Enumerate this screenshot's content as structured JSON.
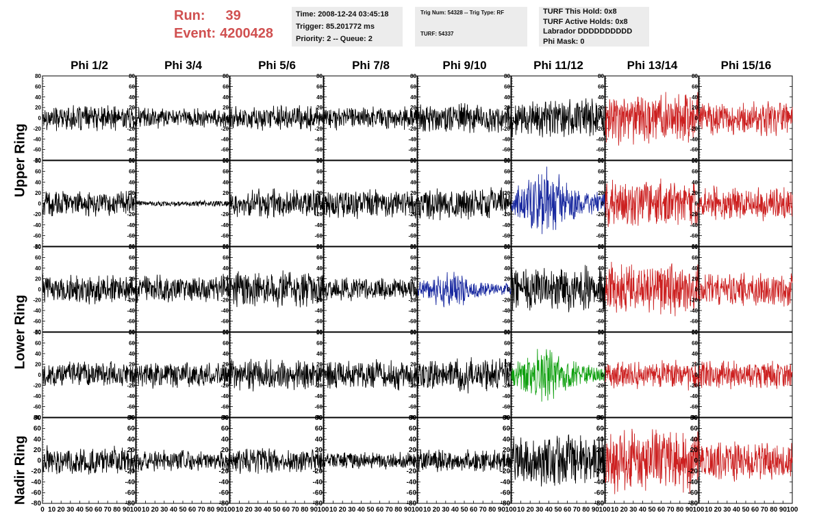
{
  "run_info": {
    "run_label": "Run:",
    "run_value": "39",
    "event_label": "Event:",
    "event_value": "4200428"
  },
  "time_box": {
    "time": "Time: 2008-12-24 03:45:18",
    "trigger": "Trigger: 85.201772 ms",
    "priority": "Priority: 2 -- Queue: 2"
  },
  "trig_box": {
    "trig": "Trig Num: 54328 -- Trig Type: RF",
    "turf": "TURF: 54337"
  },
  "turf_box": {
    "this_hold": "TURF This Hold: 0x8",
    "active_holds": "TURF Active Holds: 0x8",
    "labrador": "Labrador DDDDDDDDDD",
    "phi_mask": "Phi Mask: 0"
  },
  "columns": [
    "Phi 1/2",
    "Phi 3/4",
    "Phi 5/6",
    "Phi 7/8",
    "Phi 9/10",
    "Phi 11/12",
    "Phi 13/14",
    "Phi 15/16"
  ],
  "rings": [
    "Upper Ring",
    "Lower Ring",
    "Nadir Ring"
  ],
  "y_ticks": [
    "80",
    "60",
    "40",
    "20",
    "0",
    "-20",
    "-40",
    "-60",
    "-80"
  ],
  "x_ticks": [
    "0",
    "10",
    "20",
    "30",
    "40",
    "50",
    "60",
    "70",
    "80",
    "90",
    "100"
  ],
  "colors": {
    "black": "#000000",
    "red": "#cc2020",
    "blue": "#1a2aa0",
    "green": "#10a010",
    "header_red": "#d05050"
  },
  "chart_data": {
    "type": "line",
    "title": "",
    "xlabel": "",
    "ylabel": "",
    "xlim": [
      0,
      100
    ],
    "ylim": [
      -80,
      80
    ],
    "rows": 5,
    "cols": 8,
    "grid": false,
    "traces": [
      {
        "row": 0,
        "col": 0,
        "color": "black",
        "amplitude": 22
      },
      {
        "row": 0,
        "col": 1,
        "color": "black",
        "amplitude": 18
      },
      {
        "row": 0,
        "col": 2,
        "color": "black",
        "amplitude": 22
      },
      {
        "row": 0,
        "col": 3,
        "color": "black",
        "amplitude": 20
      },
      {
        "row": 0,
        "col": 4,
        "color": "black",
        "amplitude": 25
      },
      {
        "row": 0,
        "col": 5,
        "color": "black",
        "amplitude": 35
      },
      {
        "row": 0,
        "col": 6,
        "color": "red",
        "amplitude": 45
      },
      {
        "row": 0,
        "col": 7,
        "color": "red",
        "amplitude": 30
      },
      {
        "row": 1,
        "col": 0,
        "color": "black",
        "amplitude": 22
      },
      {
        "row": 1,
        "col": 1,
        "color": "black",
        "amplitude": 5
      },
      {
        "row": 1,
        "col": 2,
        "color": "black",
        "amplitude": 25
      },
      {
        "row": 1,
        "col": 3,
        "color": "black",
        "amplitude": 25
      },
      {
        "row": 1,
        "col": 4,
        "color": "black",
        "amplitude": 30
      },
      {
        "row": 1,
        "col": 5,
        "color": "blue",
        "amplitude": 55
      },
      {
        "row": 1,
        "col": 6,
        "color": "red",
        "amplitude": 40
      },
      {
        "row": 1,
        "col": 7,
        "color": "red",
        "amplitude": 30
      },
      {
        "row": 2,
        "col": 0,
        "color": "black",
        "amplitude": 25
      },
      {
        "row": 2,
        "col": 1,
        "color": "black",
        "amplitude": 25
      },
      {
        "row": 2,
        "col": 2,
        "color": "black",
        "amplitude": 30
      },
      {
        "row": 2,
        "col": 3,
        "color": "black",
        "amplitude": 20
      },
      {
        "row": 2,
        "col": 4,
        "color": "blue",
        "amplitude": 30
      },
      {
        "row": 2,
        "col": 5,
        "color": "black",
        "amplitude": 40
      },
      {
        "row": 2,
        "col": 6,
        "color": "red",
        "amplitude": 45
      },
      {
        "row": 2,
        "col": 7,
        "color": "red",
        "amplitude": 30
      },
      {
        "row": 3,
        "col": 0,
        "color": "black",
        "amplitude": 22
      },
      {
        "row": 3,
        "col": 1,
        "color": "black",
        "amplitude": 22
      },
      {
        "row": 3,
        "col": 2,
        "color": "black",
        "amplitude": 28
      },
      {
        "row": 3,
        "col": 3,
        "color": "black",
        "amplitude": 25
      },
      {
        "row": 3,
        "col": 4,
        "color": "black",
        "amplitude": 30
      },
      {
        "row": 3,
        "col": 5,
        "color": "green",
        "amplitude": 45
      },
      {
        "row": 3,
        "col": 6,
        "color": "red",
        "amplitude": 25
      },
      {
        "row": 3,
        "col": 7,
        "color": "red",
        "amplitude": 25
      },
      {
        "row": 4,
        "col": 0,
        "color": "black",
        "amplitude": 25
      },
      {
        "row": 4,
        "col": 1,
        "color": "black",
        "amplitude": 18
      },
      {
        "row": 4,
        "col": 2,
        "color": "black",
        "amplitude": 22
      },
      {
        "row": 4,
        "col": 3,
        "color": "black",
        "amplitude": 15
      },
      {
        "row": 4,
        "col": 4,
        "color": "black",
        "amplitude": 20
      },
      {
        "row": 4,
        "col": 5,
        "color": "black",
        "amplitude": 45
      },
      {
        "row": 4,
        "col": 6,
        "color": "red",
        "amplitude": 55
      },
      {
        "row": 4,
        "col": 7,
        "color": "red",
        "amplitude": 35
      }
    ]
  }
}
